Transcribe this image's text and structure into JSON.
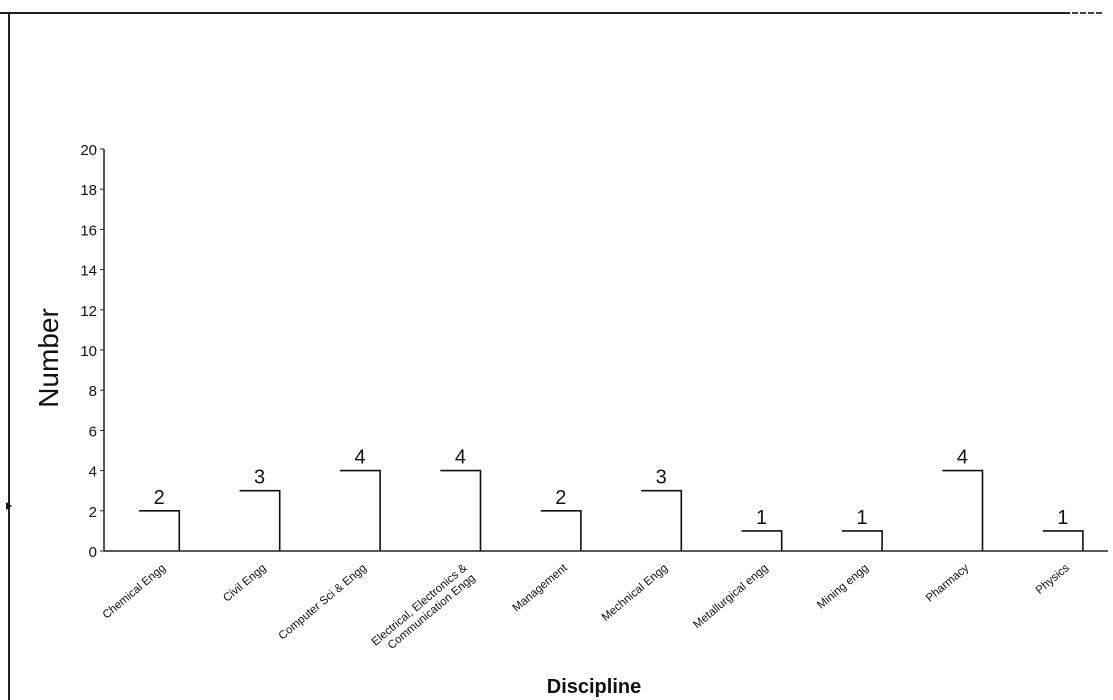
{
  "chart_data": {
    "type": "bar",
    "title": "",
    "xlabel": "Discipline",
    "ylabel": "Number",
    "ylim": [
      0,
      20
    ],
    "yticks": [
      0,
      2,
      4,
      6,
      8,
      10,
      12,
      14,
      16,
      18,
      20
    ],
    "categories": [
      "Chemical Engg",
      "Civil Engg",
      "Computer Sci & Engg",
      "Electrical, Electronics & Communication Engg",
      "Management",
      "Mechnical Engg",
      "Metallurgical engg",
      "Mining engg",
      "Pharmacy",
      "Physics"
    ],
    "values": [
      2,
      3,
      4,
      4,
      2,
      3,
      1,
      1,
      4,
      1
    ],
    "data_labels": [
      "2",
      "3",
      "4",
      "4",
      "2",
      "3",
      "1",
      "1",
      "4",
      "1"
    ],
    "grid": false,
    "legend": "none"
  }
}
